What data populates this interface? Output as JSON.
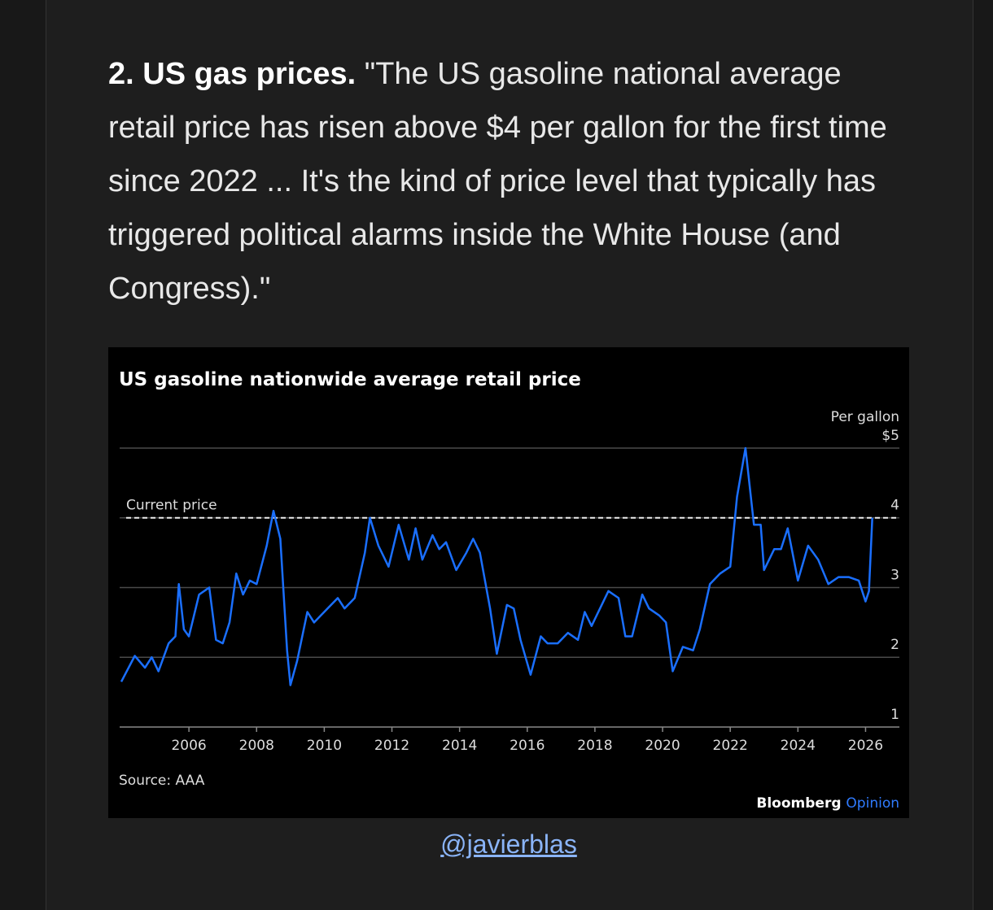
{
  "post": {
    "lead": "2. US gas prices.",
    "quote": "\"The US gasoline national average retail price has risen above $4 per gallon for the first time since 2022 ... It's the kind of price level that typically has triggered political alarms inside the White House (and Congress).\""
  },
  "chart_data": {
    "type": "line",
    "title": "US gasoline nationwide average retail price",
    "y_label": "Per gallon",
    "x": [
      2004.0,
      2004.4,
      2004.7,
      2004.9,
      2005.1,
      2005.4,
      2005.6,
      2005.7,
      2005.85,
      2006.0,
      2006.3,
      2006.6,
      2006.8,
      2007.0,
      2007.2,
      2007.4,
      2007.6,
      2007.8,
      2008.0,
      2008.3,
      2008.5,
      2008.7,
      2008.9,
      2009.0,
      2009.2,
      2009.5,
      2009.7,
      2009.9,
      2010.2,
      2010.4,
      2010.6,
      2010.9,
      2011.2,
      2011.35,
      2011.6,
      2011.9,
      2012.2,
      2012.5,
      2012.7,
      2012.9,
      2013.2,
      2013.4,
      2013.6,
      2013.9,
      2014.2,
      2014.4,
      2014.6,
      2014.9,
      2015.1,
      2015.4,
      2015.6,
      2015.8,
      2016.1,
      2016.4,
      2016.6,
      2016.9,
      2017.2,
      2017.5,
      2017.7,
      2017.9,
      2018.4,
      2018.7,
      2018.9,
      2019.1,
      2019.4,
      2019.6,
      2019.9,
      2020.1,
      2020.3,
      2020.6,
      2020.9,
      2021.1,
      2021.4,
      2021.7,
      2022.0,
      2022.2,
      2022.45,
      2022.7,
      2022.9,
      2023.0,
      2023.3,
      2023.5,
      2023.7,
      2024.0,
      2024.3,
      2024.6,
      2024.9,
      2025.2,
      2025.5,
      2025.8,
      2026.0,
      2026.1,
      2026.2
    ],
    "series": [
      {
        "color": "#1a6fff",
        "values": [
          1.65,
          2.02,
          1.85,
          2.0,
          1.8,
          2.2,
          2.3,
          3.05,
          2.4,
          2.3,
          2.9,
          3.0,
          2.25,
          2.2,
          2.5,
          3.2,
          2.9,
          3.1,
          3.05,
          3.6,
          4.1,
          3.7,
          2.1,
          1.6,
          1.95,
          2.65,
          2.5,
          2.6,
          2.75,
          2.85,
          2.7,
          2.85,
          3.5,
          4.0,
          3.6,
          3.3,
          3.9,
          3.4,
          3.85,
          3.4,
          3.75,
          3.55,
          3.65,
          3.25,
          3.5,
          3.7,
          3.5,
          2.7,
          2.05,
          2.75,
          2.7,
          2.25,
          1.75,
          2.3,
          2.2,
          2.2,
          2.35,
          2.25,
          2.65,
          2.45,
          2.95,
          2.85,
          2.3,
          2.3,
          2.9,
          2.7,
          2.6,
          2.5,
          1.8,
          2.15,
          2.1,
          2.4,
          3.05,
          3.2,
          3.3,
          4.3,
          5.0,
          3.9,
          3.9,
          3.25,
          3.55,
          3.55,
          3.85,
          3.1,
          3.6,
          3.4,
          3.05,
          3.15,
          3.15,
          3.1,
          2.8,
          2.95,
          4.0
        ]
      }
    ],
    "xlim": [
      2004,
      2027
    ],
    "xticks": [
      2006,
      2008,
      2010,
      2012,
      2014,
      2016,
      2018,
      2020,
      2022,
      2024,
      2026
    ],
    "ylim": [
      1,
      5.1
    ],
    "yticks": [
      1,
      2,
      3,
      4,
      {
        "value": 5,
        "label": "$5"
      }
    ],
    "grid": true,
    "annotation": {
      "text": "Current price",
      "value": 4.0
    },
    "source": "Source: AAA",
    "brand": "Bloomberg",
    "brand_accent": "Opinion"
  },
  "link": "@javierblas"
}
